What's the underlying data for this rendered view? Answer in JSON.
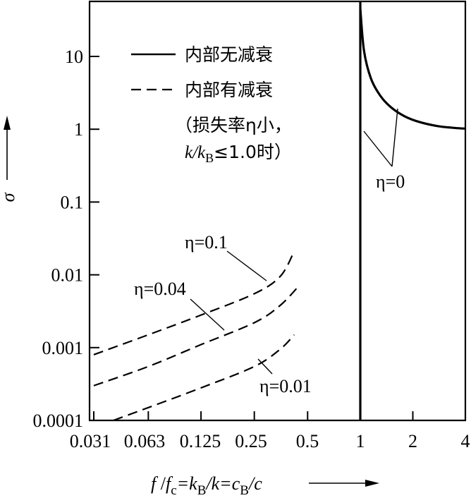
{
  "chart_data": {
    "type": "line",
    "y_scale": "log",
    "y_ticks": [
      {
        "value": 10,
        "label": "10"
      },
      {
        "value": 1,
        "label": "1"
      },
      {
        "value": 0.1,
        "label": "0.1"
      },
      {
        "value": 0.01,
        "label": "0.01"
      },
      {
        "value": 0.001,
        "label": "0.001"
      },
      {
        "value": 0.0001,
        "label": "0.0001"
      }
    ],
    "ylim": [
      0.0001,
      60
    ],
    "ylabel": "σ",
    "xlabel_parts": {
      "f": "f",
      "fc_sub": "c",
      "eq1": "=k",
      "kb_sub": "B",
      "div_k": "/k=c",
      "cb_sub": "B",
      "div_c": "/c"
    },
    "x_left_ticks": [
      {
        "value": 0.031,
        "label": "0.031"
      },
      {
        "value": 0.063,
        "label": "0.063"
      },
      {
        "value": 0.125,
        "label": "0.125"
      },
      {
        "value": 0.25,
        "label": "0.25"
      },
      {
        "value": 0.5,
        "label": "0.5"
      }
    ],
    "x_right_ticks": [
      {
        "value": 1,
        "label": "1"
      },
      {
        "value": 2,
        "label": "2"
      },
      {
        "value": 4,
        "label": "4"
      }
    ],
    "legend": [
      {
        "style": "solid",
        "label": "内部无减衰"
      },
      {
        "style": "dashed",
        "label": "内部有减衰"
      }
    ],
    "legend_note_line1": "（损失率η小，",
    "legend_note_line2_parts": {
      "k": "k/k",
      "sub": "B",
      "rest": "≤1.0时）"
    },
    "series": [
      {
        "style": "dashed",
        "eta": 0.1,
        "x": [
          0.031,
          0.063,
          0.125,
          0.25,
          0.35,
          0.42
        ],
        "y": [
          0.0008,
          0.0015,
          0.0028,
          0.0055,
          0.0095,
          0.021
        ]
      },
      {
        "style": "dashed",
        "eta": 0.04,
        "x": [
          0.031,
          0.063,
          0.125,
          0.25,
          0.35,
          0.45
        ],
        "y": [
          0.0003,
          0.00055,
          0.0011,
          0.0022,
          0.0038,
          0.0072
        ]
      },
      {
        "style": "dashed",
        "eta": 0.01,
        "x": [
          0.04,
          0.063,
          0.125,
          0.25,
          0.35,
          0.42
        ],
        "y": [
          0.0001,
          0.00015,
          0.00028,
          0.00055,
          0.00095,
          0.0015
        ]
      },
      {
        "style": "solid",
        "eta": 0,
        "x": [
          1.0,
          1.05,
          1.15,
          1.3,
          1.5,
          1.8,
          2.2,
          2.8,
          3.5,
          4.0
        ],
        "y": [
          45,
          12,
          5.0,
          2.9,
          2.0,
          1.5,
          1.25,
          1.1,
          1.04,
          1.02
        ]
      }
    ],
    "annotations": [
      {
        "target": "eta_0.1",
        "text": "η=0.1"
      },
      {
        "target": "eta_0.04",
        "text": "η=0.04"
      },
      {
        "target": "eta_0.01",
        "text": "η=0.01"
      },
      {
        "target": "eta_0",
        "text": "η=0"
      }
    ]
  }
}
